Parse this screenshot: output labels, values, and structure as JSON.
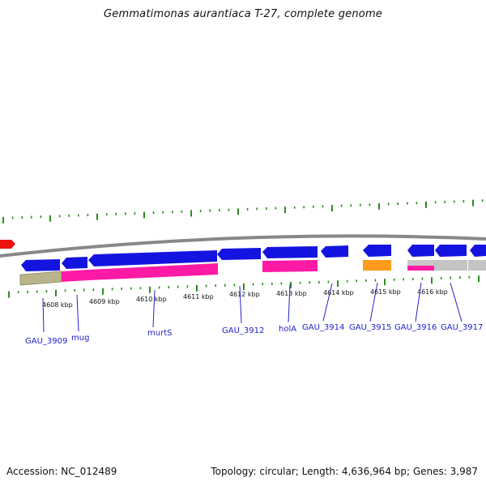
{
  "title": "Gemmatimonas aurantiaca T-27, complete genome",
  "footer": {
    "accession": "Accession: NC_012489",
    "summary": "Topology: circular; Length: 4,636,964 bp; Genes: 3,987"
  },
  "colors": {
    "forward_gene": "#1010e0",
    "mugmurt": "#ff1aa6",
    "olive": "#b9b48a",
    "orange": "#ff9b1a",
    "gray": "#c4c4c4",
    "tick": "#2e8b22",
    "backbone": "#888888",
    "label": "#2222cc"
  },
  "kbp_labels": [
    "4608 kbp",
    "4609 kbp",
    "4610 kbp",
    "4611 kbp",
    "4612 kbp",
    "4613 kbp",
    "4614 kbp",
    "4615 kbp",
    "4616 kbp"
  ],
  "genes": [
    "GAU_3909",
    "mug",
    "murtS",
    "GAU_3912",
    "holA",
    "GAU_3914",
    "GAU_3915",
    "GAU_3916",
    "GAU_3917"
  ]
}
